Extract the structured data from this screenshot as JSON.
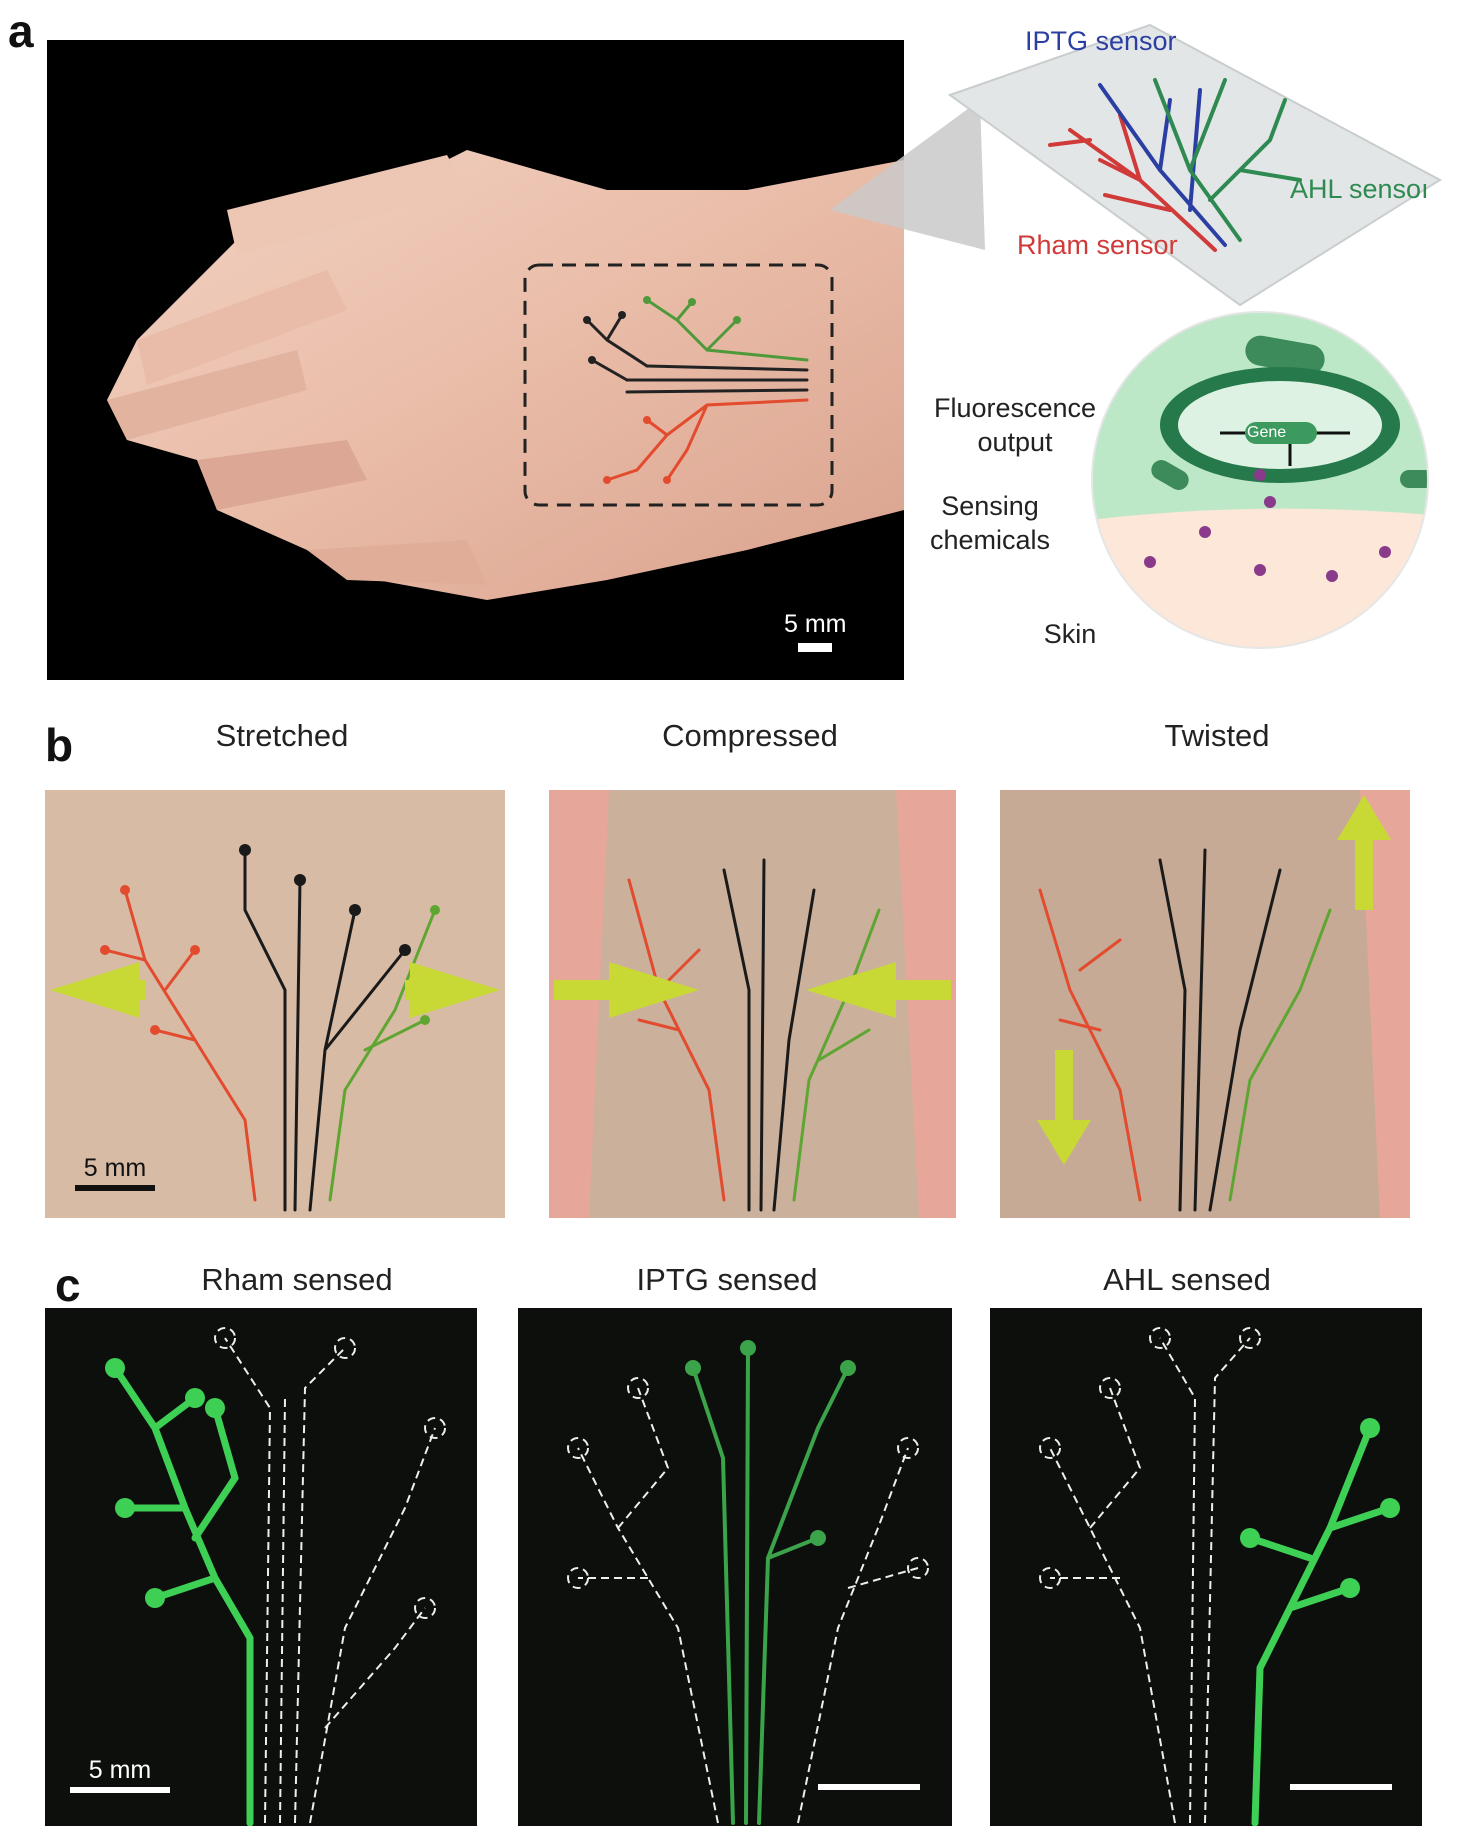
{
  "panels": {
    "a": {
      "letter": "a",
      "scale_label": "5 mm",
      "sensors": {
        "iptg": "IPTG sensor",
        "ahl": "AHL sensoı",
        "rham": "Rham sensor"
      },
      "cell": {
        "fluorescence_label": "Fluorescence\noutput",
        "sensing_label": "Sensing\nchemicals",
        "skin_label": "Skin",
        "gene_label": "Gene"
      },
      "colors": {
        "iptg": "#2b3fa3",
        "ahl": "#2f8a52",
        "rham": "#d03a38"
      }
    },
    "b": {
      "letter": "b",
      "titles": [
        "Stretched",
        "Compressed",
        "Twisted"
      ],
      "scale_label": "5 mm"
    },
    "c": {
      "letter": "c",
      "titles": [
        "Rham sensed",
        "IPTG sensed",
        "AHL sensed"
      ],
      "scale_label": "5 mm"
    }
  }
}
